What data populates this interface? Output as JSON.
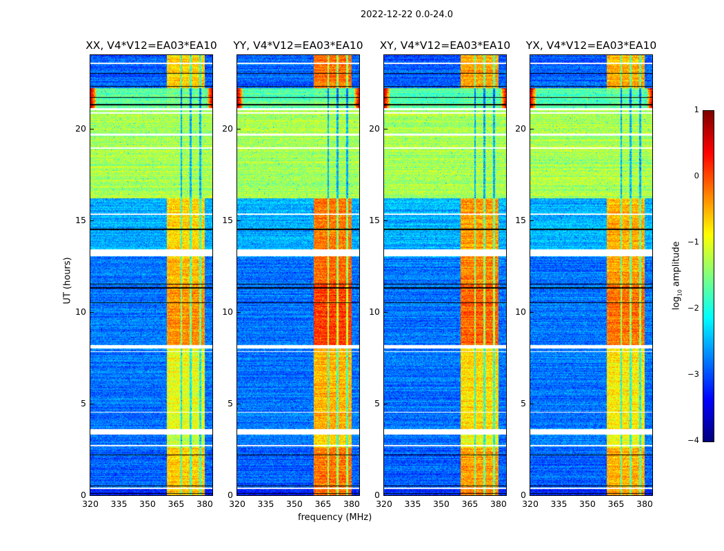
{
  "suptitle": "2022-12-22 0.0-24.0",
  "xlabel": "frequency (MHz)",
  "ylabel": "UT (hours)",
  "colorbar": {
    "label_prefix": "log",
    "label_sub": "10",
    "label_suffix": " amplitude",
    "range": [
      -4,
      1
    ],
    "ticks": [
      "1",
      "0",
      "−1",
      "−2",
      "−3",
      "−4"
    ],
    "tick_values": [
      1,
      0,
      -1,
      -2,
      -3,
      -4
    ],
    "colormap": "jet"
  },
  "chart_data": {
    "type": "heatmap",
    "xlim": [
      320,
      384
    ],
    "ylim": [
      0,
      24
    ],
    "xticks": [
      "320",
      "335",
      "350",
      "365",
      "380"
    ],
    "xtick_values": [
      320,
      335,
      350,
      365,
      380
    ],
    "yticks": [
      "0",
      "5",
      "10",
      "15",
      "20"
    ],
    "ytick_values": [
      0,
      5,
      10,
      15,
      20
    ],
    "freq_band": {
      "start": 360,
      "end": 380,
      "gaps": [
        367.5,
        372.5,
        377.5
      ]
    },
    "time_segments": [
      {
        "t0": 0.0,
        "t1": 0.4,
        "background": -3.2,
        "band": -0.3
      },
      {
        "t0": 0.4,
        "t1": 2.6,
        "background": -2.9,
        "band": -0.4
      },
      {
        "t0": 2.6,
        "t1": 3.3,
        "background": -2.8,
        "band": -0.9
      },
      {
        "t0": 3.3,
        "t1": 8.2,
        "background": -2.8,
        "band": -0.7
      },
      {
        "t0": 8.2,
        "t1": 11.5,
        "background": -2.8,
        "band": -0.1
      },
      {
        "t0": 11.5,
        "t1": 13.0,
        "background": -2.8,
        "band": -0.3
      },
      {
        "t0": 13.0,
        "t1": 16.2,
        "background": -2.5,
        "band": -0.4
      },
      {
        "t0": 16.2,
        "t1": 21.0,
        "background": -1.3,
        "band": -1.3
      },
      {
        "t0": 21.0,
        "t1": 22.2,
        "background": -1.7,
        "band": -1.6,
        "edge": 0.7
      },
      {
        "t0": 22.2,
        "t1": 24.0,
        "background": -2.9,
        "band": -0.4
      }
    ],
    "flagged_rows": [
      [
        0.33,
        0.43
      ],
      [
        2.65,
        2.75
      ],
      [
        3.3,
        3.6
      ],
      [
        4.5,
        4.55
      ],
      [
        7.8,
        7.85
      ],
      [
        8.0,
        8.2
      ],
      [
        13.05,
        13.4
      ],
      [
        15.3,
        15.35
      ],
      [
        18.9,
        18.95
      ],
      [
        19.6,
        19.7
      ],
      [
        20.8,
        20.9
      ],
      [
        21.0,
        21.1
      ],
      [
        23.5,
        23.6
      ]
    ],
    "dark_rows": [
      0.1,
      0.5,
      2.2,
      10.5,
      11.3,
      11.5,
      14.5,
      21.3,
      21.7,
      22.3,
      23.0
    ],
    "panels": [
      {
        "title": "XX, V4*V12=EA03*EA10",
        "band_offset": -0.25
      },
      {
        "title": "YY, V4*V12=EA03*EA10",
        "band_offset": 0.2
      },
      {
        "title": "XY, V4*V12=EA03*EA10",
        "band_offset": 0.0
      },
      {
        "title": "YX, V4*V12=EA03*EA10",
        "band_offset": -0.1
      }
    ]
  }
}
